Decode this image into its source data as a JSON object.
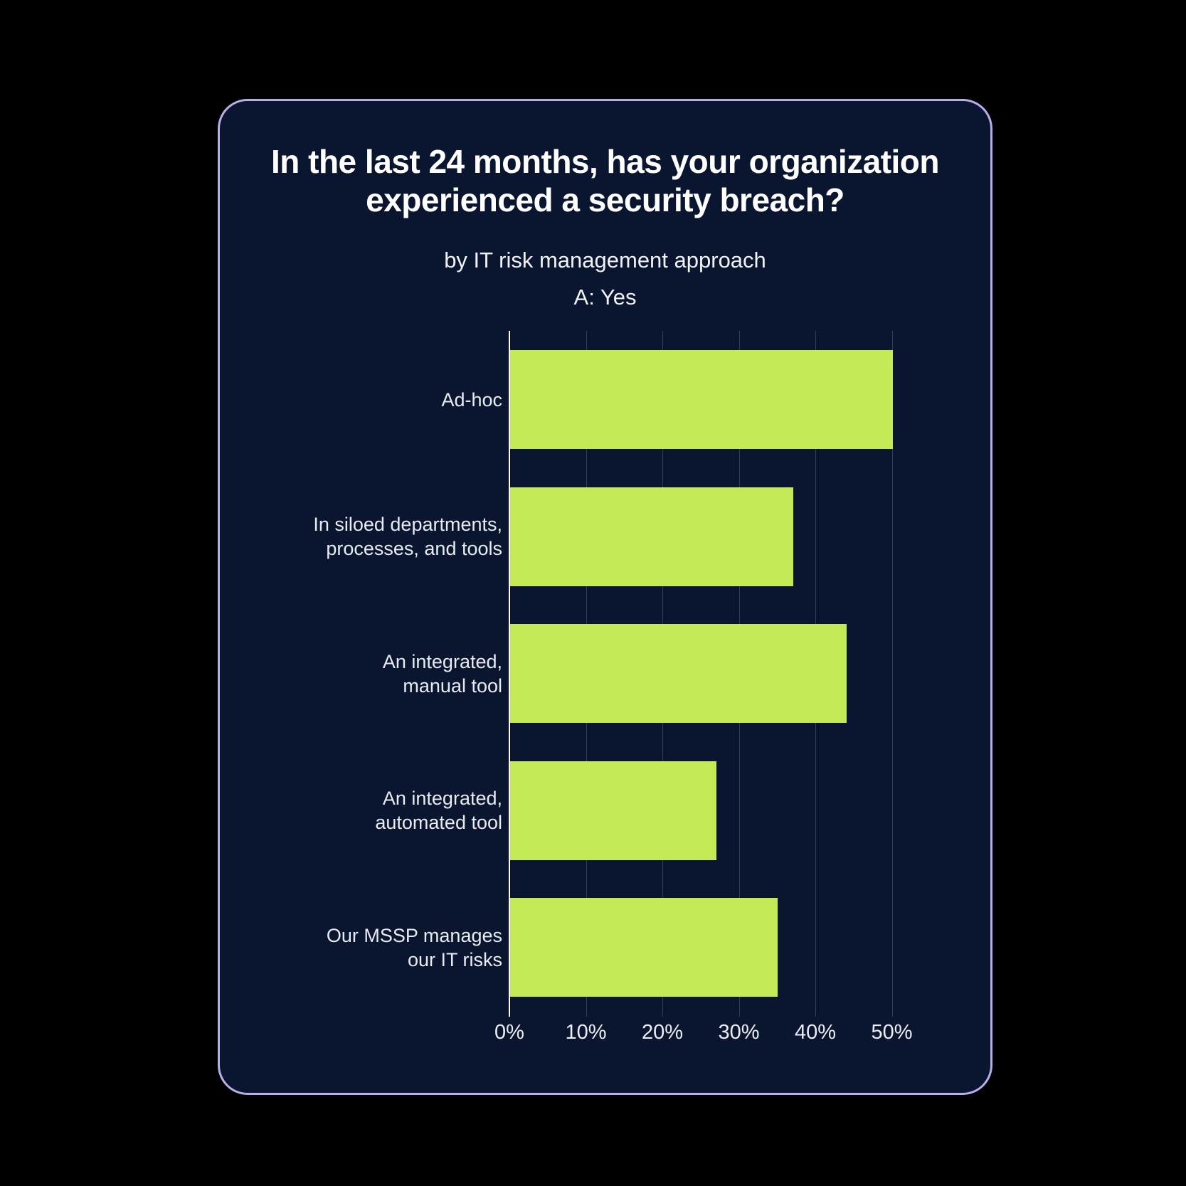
{
  "card": {
    "title": "In the last 24 months, has your organization\nexperienced a security breach?",
    "subtitle": "by IT risk management approach",
    "answer_label": "A: Yes"
  },
  "chart_data": {
    "type": "bar",
    "orientation": "horizontal",
    "title": "In the last 24 months, has your organization experienced a security breach?",
    "subtitle": "by IT risk management approach",
    "series_label": "A: Yes",
    "categories": [
      "Ad-hoc",
      "In siloed departments,\nprocesses, and tools",
      "An integrated,\nmanual tool",
      "An integrated,\nautomated tool",
      "Our MSSP manages\nour IT risks"
    ],
    "values": [
      50,
      37,
      44,
      27,
      35
    ],
    "unit": "%",
    "x_tick_values": [
      0,
      10,
      20,
      30,
      40,
      50
    ],
    "x_tick_labels": [
      "0%",
      "10%",
      "20%",
      "30%",
      "40%",
      "50%"
    ],
    "xlim": [
      0,
      55
    ],
    "grid": "vertical",
    "legend": "none",
    "colors": {
      "bar": "#c4ea55",
      "axis_line": "#ffffff",
      "gridline": "#323d58",
      "card_background": "#0a1530",
      "card_border": "#b7aeea",
      "page_background": "#000000",
      "title_text": "#ffffff",
      "label_text": "#e9ebf2"
    }
  }
}
